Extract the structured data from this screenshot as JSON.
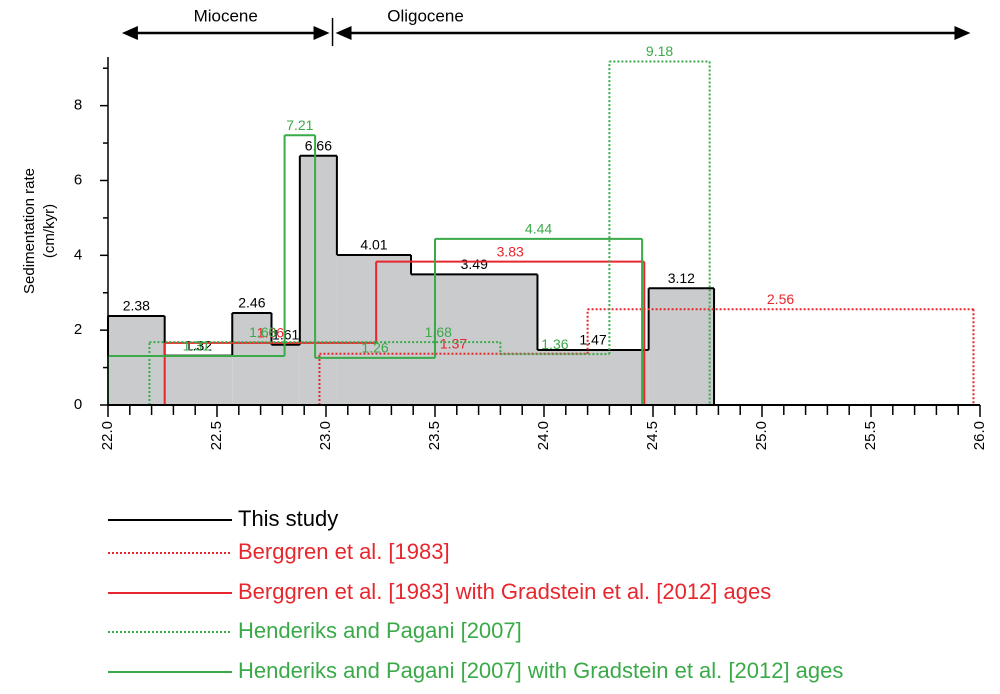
{
  "chart_data": {
    "type": "step",
    "ylabel": [
      "Sedimentation rate",
      "(cm/kyr)"
    ],
    "xlim": [
      22,
      26
    ],
    "ylim": [
      0,
      9.3
    ],
    "xticks": [
      {
        "value": 22,
        "label": "22.0"
      },
      {
        "value": 22.5,
        "label": "22.5"
      },
      {
        "value": 23,
        "label": "23.0"
      },
      {
        "value": 23.5,
        "label": "23.5"
      },
      {
        "value": 24,
        "label": "24.0"
      },
      {
        "value": 24.5,
        "label": "24.5"
      },
      {
        "value": 25,
        "label": "25.0"
      },
      {
        "value": 25.5,
        "label": "25.5"
      },
      {
        "value": 26,
        "label": "26.0"
      }
    ],
    "xminorticks": [
      22.1,
      22.2,
      22.3,
      22.4,
      22.6,
      22.7,
      22.8,
      22.9,
      23.1,
      23.2,
      23.3,
      23.4,
      23.6,
      23.7,
      23.8,
      23.9,
      24.1,
      24.2,
      24.3,
      24.4,
      24.6,
      24.7,
      24.8,
      24.9,
      25.1,
      25.2,
      25.3,
      25.4,
      25.6,
      25.7,
      25.8,
      25.9
    ],
    "yticks": [
      0,
      2,
      4,
      6,
      8
    ],
    "yminorticks": [
      1,
      3,
      5,
      7,
      9
    ],
    "periods": [
      {
        "label": "Miocene",
        "start": 22.05,
        "end": 23.03
      },
      {
        "label": "Oligocene",
        "start": 23.03,
        "end": 25.97
      }
    ],
    "series": [
      {
        "name": "This study",
        "color": "#000000",
        "dash": false,
        "fill": "#c9cbcd",
        "bins": [
          22.0,
          22.26,
          22.57,
          22.75,
          22.88,
          23.05,
          23.39,
          23.97,
          24.48,
          24.78
        ],
        "values": [
          2.38,
          1.32,
          2.46,
          1.61,
          6.66,
          4.01,
          3.49,
          1.47,
          3.12
        ]
      },
      {
        "name": "Berggren et al. [1983]",
        "color": "#e8262d",
        "dash": true,
        "bins": [
          22.97,
          24.2,
          25.97
        ],
        "values": [
          1.37,
          2.56
        ]
      },
      {
        "name": "Berggren et al. [1983] with Gradstein et al. [2012] ages",
        "color": "#e8262d",
        "dash": false,
        "bins": [
          22.26,
          23.23,
          24.46
        ],
        "values": [
          1.66,
          3.83
        ]
      },
      {
        "name": "Henderiks and Pagani [2007]",
        "color": "#3aaa48",
        "dash": true,
        "bins": [
          22.19,
          23.23,
          23.8,
          24.3,
          24.76
        ],
        "values": [
          1.68,
          1.68,
          1.36,
          9.18
        ]
      },
      {
        "name": "Henderiks and Pagani [2007] with Gradstein et al. [2012] ages",
        "color": "#3aaa48",
        "dash": false,
        "bins": [
          22.0,
          22.81,
          22.95,
          23.5,
          24.45
        ],
        "values": [
          1.31,
          7.21,
          1.26,
          4.44
        ]
      }
    ]
  }
}
